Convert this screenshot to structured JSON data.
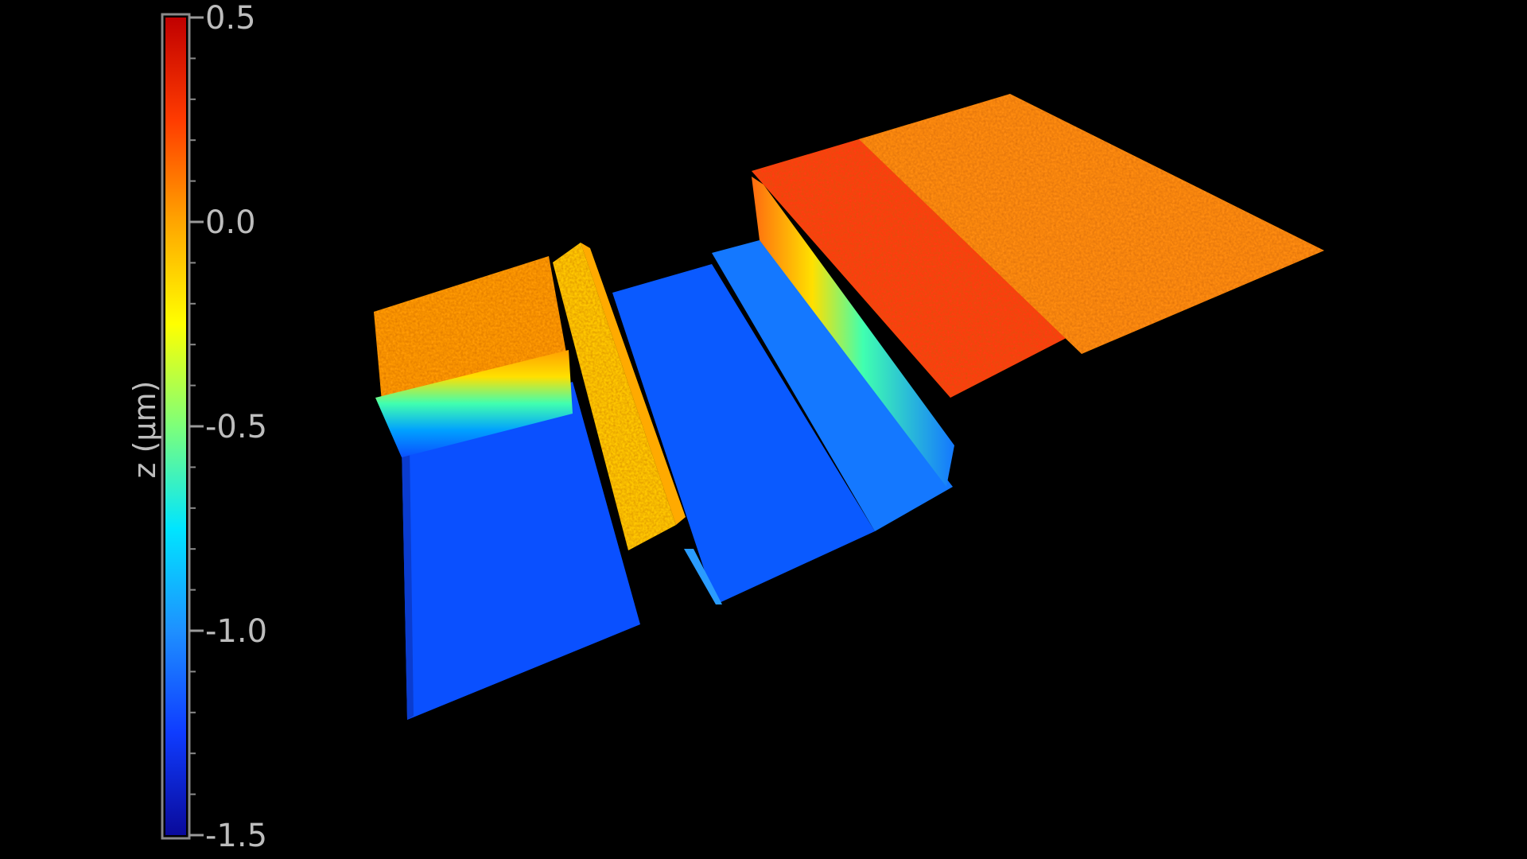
{
  "chart_data": {
    "type": "surface-3d",
    "colorbar": {
      "label": "z (μm)",
      "min": -1.5,
      "max": 0.5,
      "ticks": [
        {
          "value": 0.5,
          "label": "0.5"
        },
        {
          "value": 0.0,
          "label": "0.0"
        },
        {
          "value": -0.5,
          "label": "-0.5"
        },
        {
          "value": -1.0,
          "label": "-1.0"
        },
        {
          "value": -1.5,
          "label": "-1.5"
        }
      ],
      "colormap": [
        "#0a0a9a",
        "#0f3cff",
        "#1e90ff",
        "#00e5ff",
        "#7dff7a",
        "#ffff00",
        "#ffa500",
        "#ff3b00",
        "#c00000"
      ]
    },
    "surface_regions": [
      {
        "region": "left-top-plateau",
        "z": -0.05,
        "color": "#ff9a10"
      },
      {
        "region": "left-trench-floor",
        "z": -1.2,
        "color": "#0a50ff"
      },
      {
        "region": "narrow-ridge",
        "z": -0.3,
        "color": "#ffc800"
      },
      {
        "region": "middle-channel-floor",
        "z": -1.15,
        "color": "#0a5aff"
      },
      {
        "region": "middle-step",
        "z": -1.0,
        "color": "#1478ff"
      },
      {
        "region": "right-step-edge",
        "z": 0.25,
        "color": "#ff3c14"
      },
      {
        "region": "right-plateau",
        "z": 0.05,
        "color": "#ff8c14"
      }
    ],
    "background": "#000000"
  }
}
